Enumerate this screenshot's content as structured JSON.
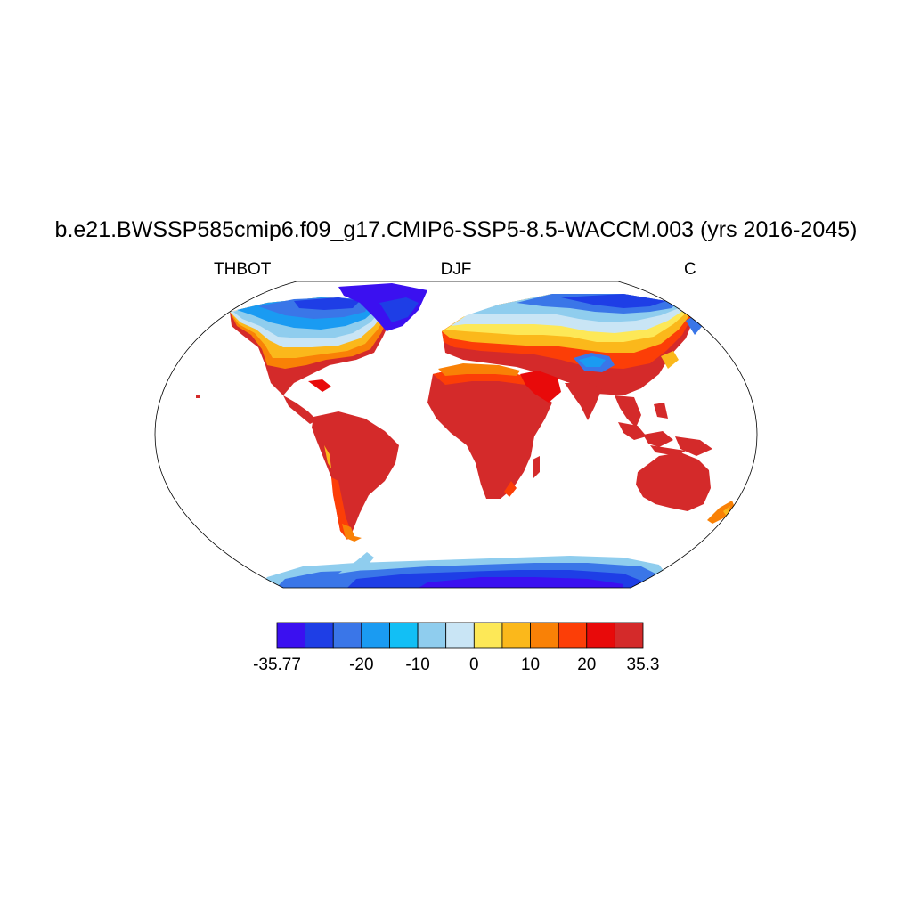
{
  "header": {
    "title": "b.e21.BWSSP585cmip6.f09_g17.CMIP6-SSP5-8.5-WACCM.003 (yrs 2016-2045)",
    "left_label": "THBOT",
    "center_label": "DJF",
    "right_label": "C"
  },
  "map": {
    "projection": "Robinson",
    "variable": "THBOT",
    "season": "DJF",
    "units": "C"
  },
  "colorbar": {
    "colors": [
      "#3b10f0",
      "#1e3ee6",
      "#3a76e8",
      "#1a9bf2",
      "#12bff5",
      "#8fcdee",
      "#c9e5f5",
      "#fde857",
      "#fbb81b",
      "#f98106",
      "#fc3e07",
      "#e80a0a",
      "#d42a2a"
    ],
    "tick_labels": [
      "-35.77",
      "-20",
      "-10",
      "0",
      "10",
      "20",
      "35.3"
    ],
    "min": -35.77,
    "max": 35.3
  }
}
